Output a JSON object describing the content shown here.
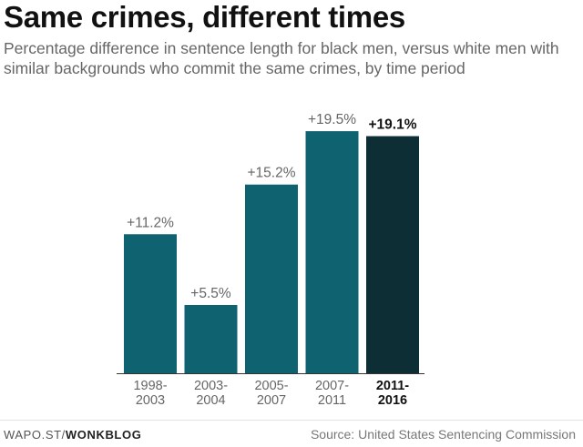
{
  "header": {
    "title": "Same crimes, different times",
    "subtitle": "Percentage difference in sentence length for black men, versus white men with similar backgrounds who commit the same crimes, by time period"
  },
  "chart_data": {
    "type": "bar",
    "categories": [
      "1998-2003",
      "2003-2004",
      "2005-2007",
      "2007-2011",
      "2011-2016"
    ],
    "category_lines": [
      [
        "1998-",
        "2003"
      ],
      [
        "2003-",
        "2004"
      ],
      [
        "2005-",
        "2007"
      ],
      [
        "2007-",
        "2011"
      ],
      [
        "2011-",
        "2016"
      ]
    ],
    "values": [
      11.2,
      5.5,
      15.2,
      19.5,
      19.1
    ],
    "value_labels": [
      "+11.2%",
      "+5.5%",
      "+15.2%",
      "+19.5%",
      "+19.1%"
    ],
    "highlight_index": 4,
    "ylim": [
      0,
      22
    ],
    "grid": false,
    "colors": {
      "bar": "#0f6270",
      "highlight": "#0d2e34",
      "label": "#666666",
      "highlight_label": "#111111",
      "axis": "#333333"
    }
  },
  "footer": {
    "site_prefix": "WAPO.ST/",
    "site_name": "WONKBLOG",
    "source": "Source: United States Sentencing Commission"
  }
}
